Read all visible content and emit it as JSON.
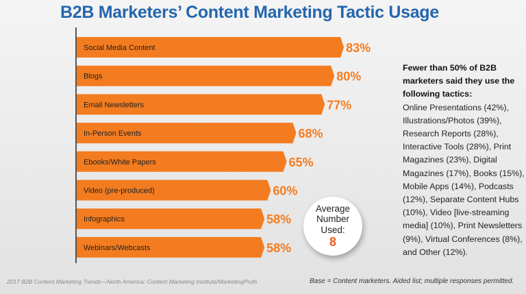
{
  "chart_data": {
    "type": "bar",
    "orientation": "horizontal",
    "title": "B2B Marketers’ Content Marketing Tactic Usage",
    "categories": [
      "Social Media Content",
      "Blogs",
      "Email Newsletters",
      "In-Person Events",
      "Ebooks/White Papers",
      "Video (pre-produced)",
      "Infographics",
      "Webinars/Webcasts"
    ],
    "values": [
      83,
      80,
      77,
      68,
      65,
      60,
      58,
      58
    ],
    "value_labels": [
      "83%",
      "80%",
      "77%",
      "68%",
      "65%",
      "60%",
      "58%",
      "58%"
    ],
    "xlim": [
      0,
      100
    ],
    "grid": false,
    "bar_color": "#f47c20",
    "label_color": "#f47c20"
  },
  "title_color": "#2466ae",
  "note": {
    "heading": "Fewer than 50% of B2B marketers said they use the following tactics:",
    "body": "Online Presentations (42%), Illustrations/Photos (39%), Research Reports (28%), Interactive Tools (28%), Print Magazines (23%), Digital Magazines (17%), Books (15%), Mobile Apps (14%), Podcasts (12%), Separate Content Hubs (10%), Video [live-streaming media] (10%), Print Newsletters (9%), Virtual Conferences (8%), and Other (12%)."
  },
  "average": {
    "label": "Average Number Used:",
    "value": "8"
  },
  "source": "2017 B2B Content Marketing Trends—North America: Content Marketing Institute/MarketingProfs",
  "base": "Base = Content marketers. Aided list; multiple responses permitted."
}
